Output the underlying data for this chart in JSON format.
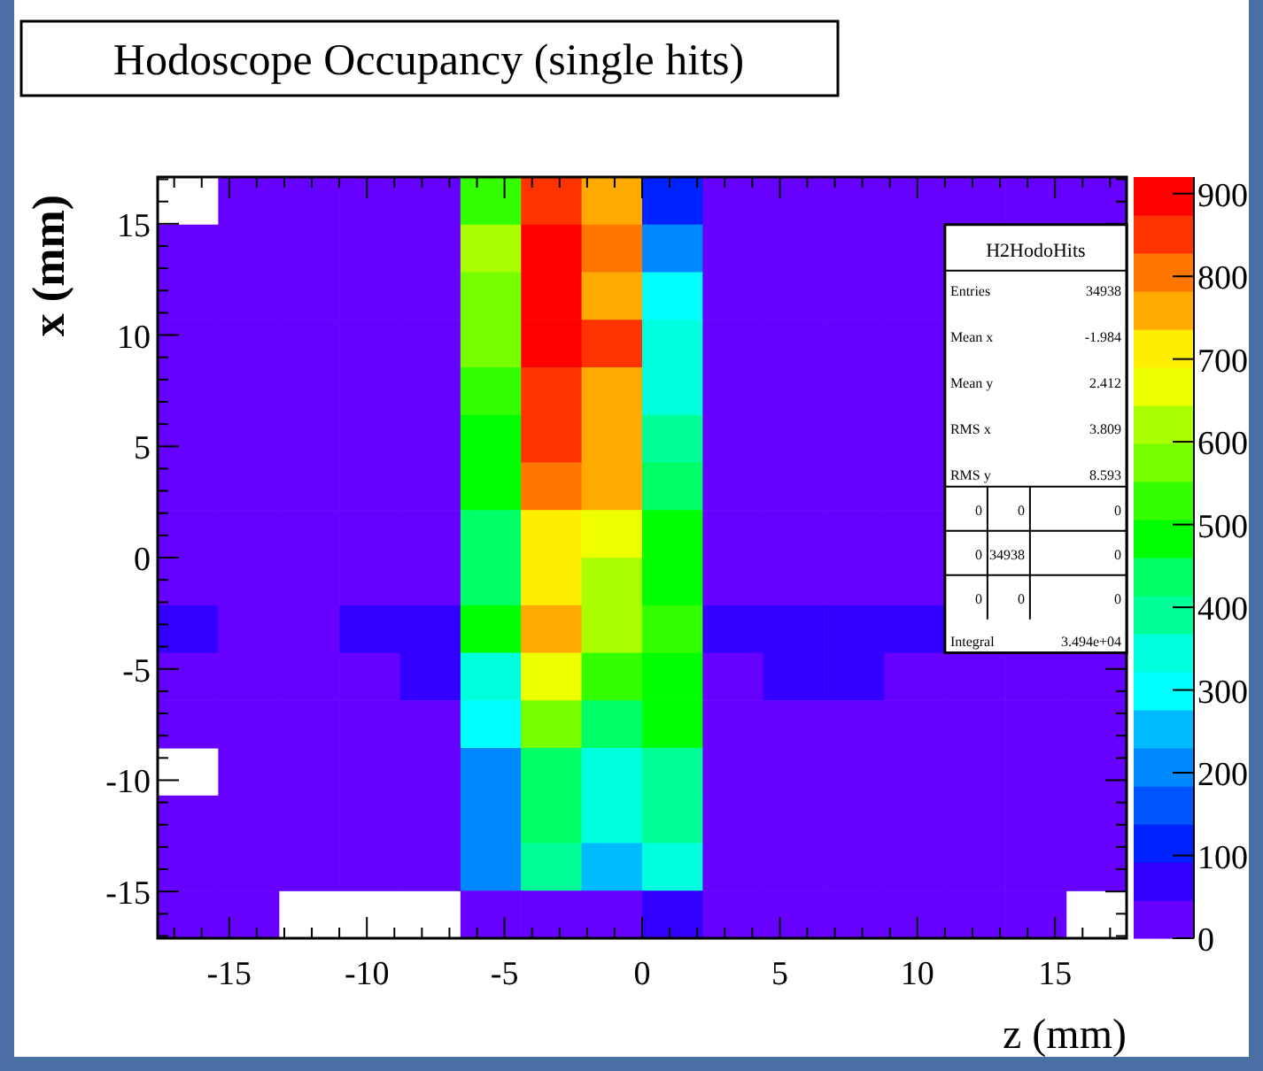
{
  "chart_data": {
    "type": "heatmap",
    "title": "Hodoscope Occupancy (single hits)",
    "xlabel": "z (mm)",
    "ylabel": "x (mm)",
    "xlim": [
      -17.6,
      17.6
    ],
    "xticks": [
      -15,
      -10,
      -5,
      0,
      5,
      10,
      15
    ],
    "ylim": [
      -17.1,
      17.1
    ],
    "yticks": [
      -15,
      -10,
      -5,
      0,
      5,
      10,
      15
    ],
    "clim": [
      0,
      920
    ],
    "cticks": [
      0,
      100,
      200,
      300,
      400,
      500,
      600,
      700,
      800,
      900
    ],
    "cells": [
      [
        null,
        20,
        20,
        20,
        20,
        530,
        850,
        760,
        115,
        20,
        20,
        20,
        20,
        20,
        20,
        20
      ],
      [
        20,
        20,
        20,
        20,
        20,
        620,
        895,
        805,
        205,
        20,
        20,
        20,
        20,
        null,
        null,
        null
      ],
      [
        20,
        20,
        20,
        20,
        20,
        575,
        895,
        760,
        300,
        20,
        20,
        20,
        20,
        null,
        null,
        null
      ],
      [
        20,
        20,
        20,
        20,
        20,
        575,
        895,
        850,
        345,
        20,
        20,
        20,
        20,
        null,
        null,
        null
      ],
      [
        20,
        20,
        20,
        20,
        20,
        530,
        850,
        760,
        345,
        20,
        20,
        20,
        20,
        null,
        null,
        null
      ],
      [
        20,
        20,
        20,
        20,
        20,
        485,
        850,
        760,
        390,
        20,
        20,
        20,
        20,
        null,
        null,
        null
      ],
      [
        20,
        20,
        20,
        20,
        20,
        485,
        805,
        760,
        435,
        20,
        20,
        20,
        20,
        null,
        null,
        null
      ],
      [
        20,
        20,
        20,
        20,
        20,
        435,
        715,
        665,
        485,
        20,
        20,
        20,
        20,
        null,
        null,
        null
      ],
      [
        20,
        20,
        20,
        20,
        20,
        435,
        715,
        620,
        485,
        20,
        20,
        20,
        20,
        null,
        null,
        null
      ],
      [
        70,
        20,
        20,
        70,
        70,
        485,
        760,
        620,
        530,
        70,
        70,
        70,
        70,
        null,
        null,
        null
      ],
      [
        20,
        20,
        20,
        20,
        70,
        345,
        665,
        530,
        485,
        20,
        70,
        70,
        20,
        20,
        20,
        20
      ],
      [
        20,
        20,
        20,
        20,
        20,
        300,
        575,
        435,
        485,
        20,
        20,
        20,
        20,
        20,
        20,
        20
      ],
      [
        null,
        20,
        20,
        20,
        20,
        205,
        435,
        345,
        390,
        20,
        20,
        20,
        20,
        20,
        20,
        20
      ],
      [
        20,
        20,
        20,
        20,
        20,
        205,
        435,
        345,
        390,
        20,
        20,
        20,
        20,
        20,
        20,
        20
      ],
      [
        20,
        20,
        20,
        20,
        20,
        205,
        390,
        255,
        345,
        20,
        20,
        20,
        20,
        20,
        20,
        20
      ],
      [
        20,
        20,
        null,
        null,
        null,
        20,
        20,
        20,
        70,
        20,
        20,
        20,
        20,
        20,
        20,
        null
      ]
    ],
    "annotations": [
      "H2HodoHits",
      "Entries",
      "34938",
      "Mean x",
      "-1.984",
      "Mean y",
      "2.412",
      "RMS x",
      "3.809",
      "RMS y",
      "8.593",
      "0",
      "0",
      "0",
      "0",
      "34938",
      "0",
      "0",
      "0",
      "0",
      "Integral",
      "3.494e+04"
    ]
  }
}
